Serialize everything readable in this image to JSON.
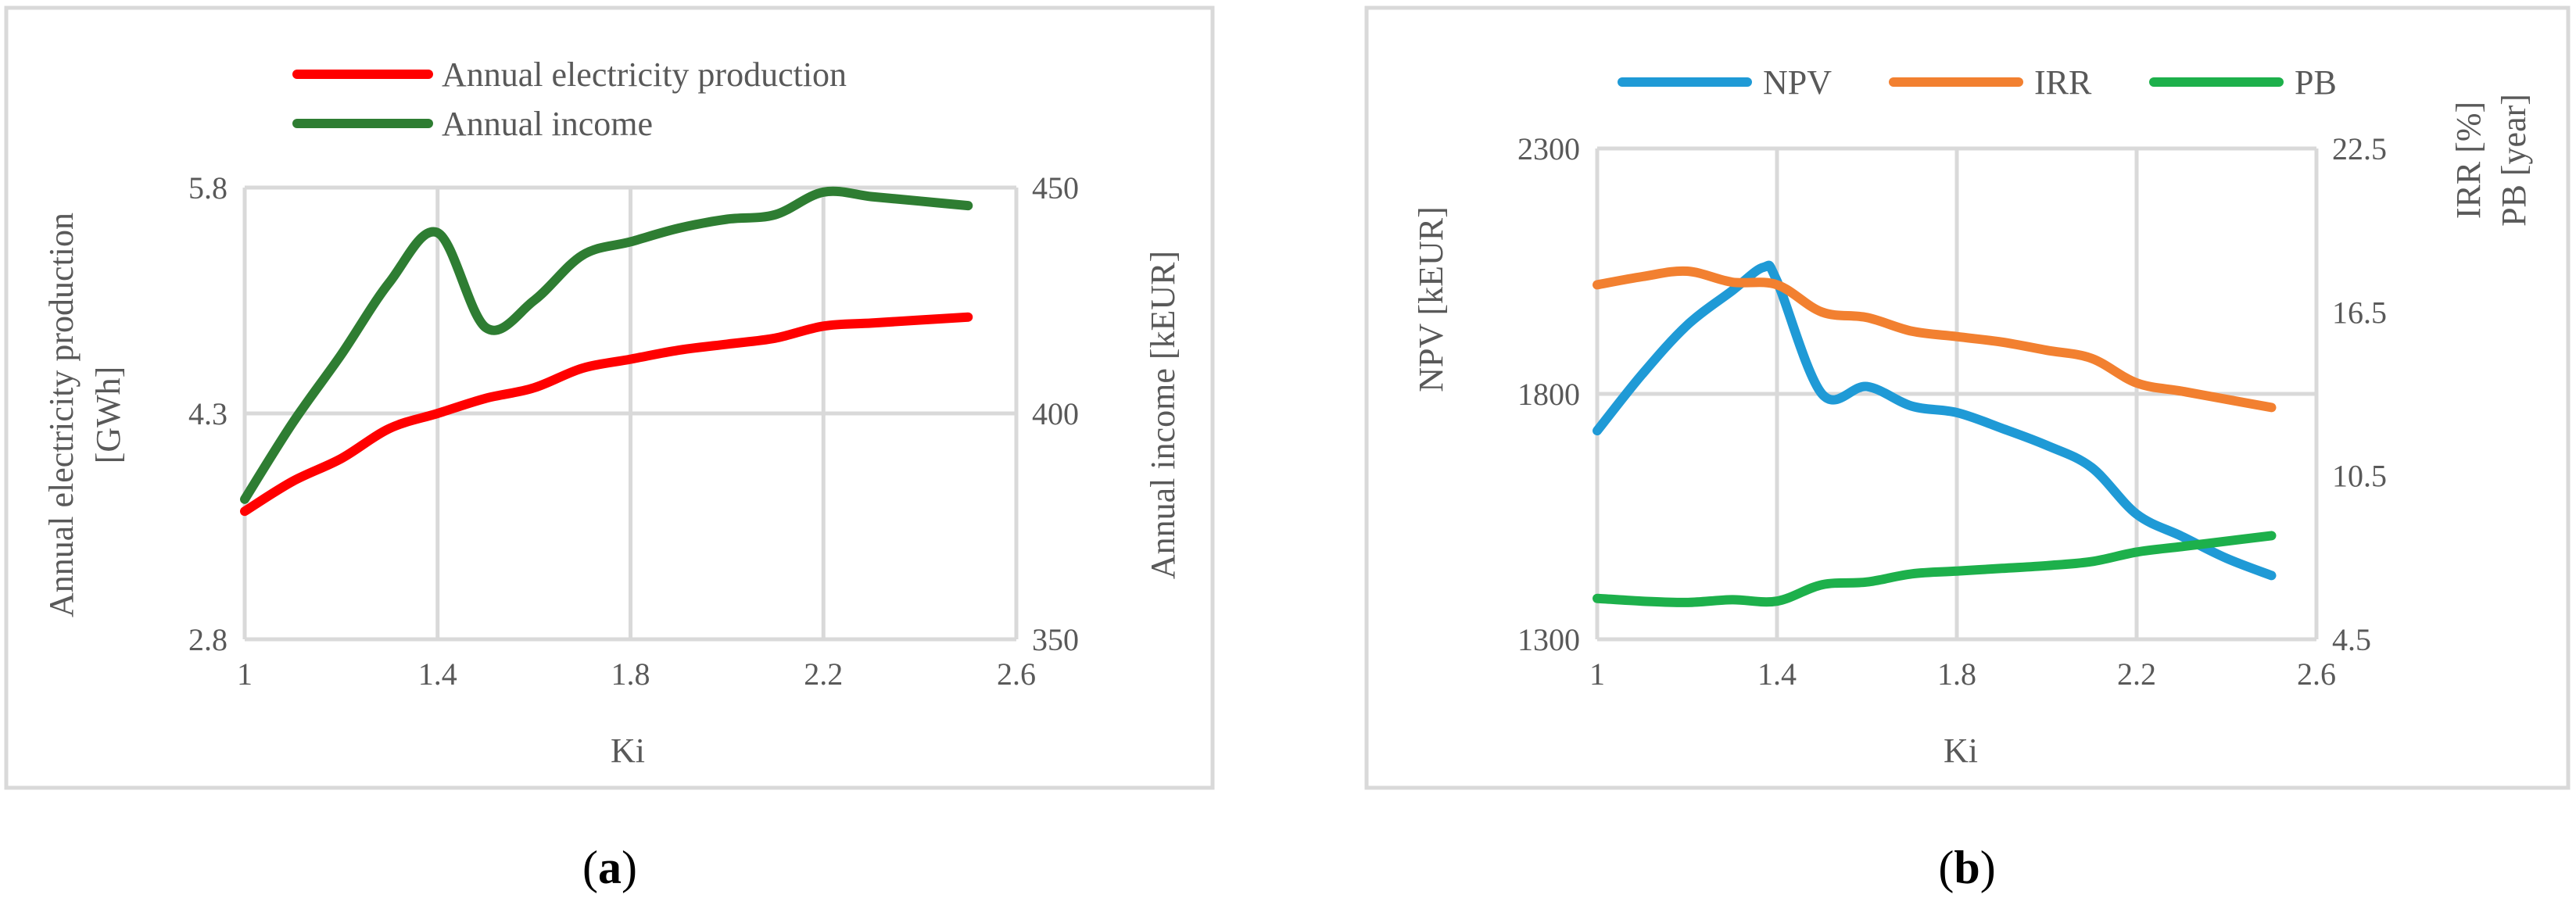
{
  "chart_data": [
    {
      "panel": "a",
      "caption_open": "(",
      "caption_letter": "a",
      "caption_close": ")",
      "type": "line",
      "title": "",
      "xlabel": "Ki",
      "ylabel": "Annual electricity production [GWh]",
      "ylabel_lines": [
        "Annual electricity production",
        "[GWh]"
      ],
      "y2label": "Annual income [kEUR]",
      "xlim": [
        1,
        2.6
      ],
      "xticks": [
        1,
        1.4,
        1.8,
        2.2,
        2.6
      ],
      "xtick_labels": [
        "1",
        "1.4",
        "1.8",
        "2.2",
        "2.6"
      ],
      "ylim": [
        2.8,
        5.8
      ],
      "yticks": [
        2.8,
        4.3,
        5.8
      ],
      "ytick_labels": [
        "2.8",
        "4.3",
        "5.8"
      ],
      "y2lim": [
        350,
        450
      ],
      "y2ticks": [
        350,
        400,
        450
      ],
      "y2tick_labels": [
        "350",
        "400",
        "450"
      ],
      "grid": "vertical and horizontal",
      "legend_position": "top",
      "series": [
        {
          "name": "Annual electricity production",
          "color": "#ff0000",
          "axis": "left",
          "x": [
            1,
            1.1,
            1.2,
            1.3,
            1.4,
            1.5,
            1.6,
            1.7,
            1.8,
            1.9,
            2.0,
            2.1,
            2.2,
            2.3,
            2.4,
            2.5
          ],
          "values": [
            3.65,
            3.85,
            4.0,
            4.2,
            4.3,
            4.4,
            4.47,
            4.6,
            4.66,
            4.72,
            4.76,
            4.8,
            4.88,
            4.9,
            4.92,
            4.94
          ]
        },
        {
          "name": "Annual income",
          "color": "#2e7d32",
          "axis": "right",
          "x": [
            1,
            1.1,
            1.2,
            1.3,
            1.4,
            1.5,
            1.6,
            1.7,
            1.8,
            1.9,
            2.0,
            2.1,
            2.2,
            2.3,
            2.4,
            2.5
          ],
          "values": [
            381,
            398,
            413,
            429,
            440,
            419,
            425,
            435,
            438,
            441,
            443,
            444,
            449,
            448,
            447,
            446
          ]
        }
      ]
    },
    {
      "panel": "b",
      "caption_open": "(",
      "caption_letter": "b",
      "caption_close": ")",
      "type": "line",
      "title": "",
      "xlabel": "Ki",
      "ylabel": "NPV [kEUR]",
      "y2label_lines": [
        "IRR [%]",
        "PB [year]"
      ],
      "xlim": [
        1,
        2.6
      ],
      "xticks": [
        1,
        1.4,
        1.8,
        2.2,
        2.6
      ],
      "xtick_labels": [
        "1",
        "1.4",
        "1.8",
        "2.2",
        "2.6"
      ],
      "ylim": [
        1300,
        2300
      ],
      "yticks": [
        1300,
        1800,
        2300
      ],
      "ytick_labels": [
        "1300",
        "1800",
        "2300"
      ],
      "y2lim": [
        4.5,
        22.5
      ],
      "y2ticks": [
        4.5,
        10.5,
        16.5,
        22.5
      ],
      "y2tick_labels": [
        "4.5",
        "10.5",
        "16.5",
        "22.5"
      ],
      "grid": "vertical and horizontal",
      "legend_position": "top",
      "series": [
        {
          "name": "NPV",
          "color": "#1f9ad6",
          "axis": "left",
          "x": [
            1,
            1.1,
            1.2,
            1.3,
            1.37,
            1.4,
            1.5,
            1.6,
            1.7,
            1.8,
            1.9,
            2.0,
            2.1,
            2.2,
            2.3,
            2.4,
            2.5
          ],
          "values": [
            1725,
            1840,
            1940,
            2010,
            2058,
            2030,
            1800,
            1815,
            1775,
            1762,
            1730,
            1695,
            1650,
            1555,
            1510,
            1465,
            1430
          ]
        },
        {
          "name": "IRR",
          "color": "#f28030",
          "axis": "right",
          "x": [
            1,
            1.1,
            1.2,
            1.3,
            1.4,
            1.5,
            1.6,
            1.7,
            1.8,
            1.9,
            2.0,
            2.1,
            2.2,
            2.3,
            2.4,
            2.5
          ],
          "values": [
            17.5,
            17.8,
            18.0,
            17.6,
            17.5,
            16.5,
            16.3,
            15.8,
            15.6,
            15.4,
            15.1,
            14.8,
            13.9,
            13.6,
            13.3,
            13.0
          ]
        },
        {
          "name": "PB",
          "color": "#1db04b",
          "axis": "right",
          "x": [
            1,
            1.1,
            1.2,
            1.3,
            1.4,
            1.5,
            1.6,
            1.7,
            1.8,
            1.9,
            2.0,
            2.1,
            2.2,
            2.3,
            2.4,
            2.5
          ],
          "values": [
            6.0,
            5.9,
            5.85,
            5.95,
            5.9,
            6.5,
            6.6,
            6.9,
            7.0,
            7.1,
            7.2,
            7.35,
            7.7,
            7.9,
            8.1,
            8.3
          ]
        }
      ]
    }
  ]
}
